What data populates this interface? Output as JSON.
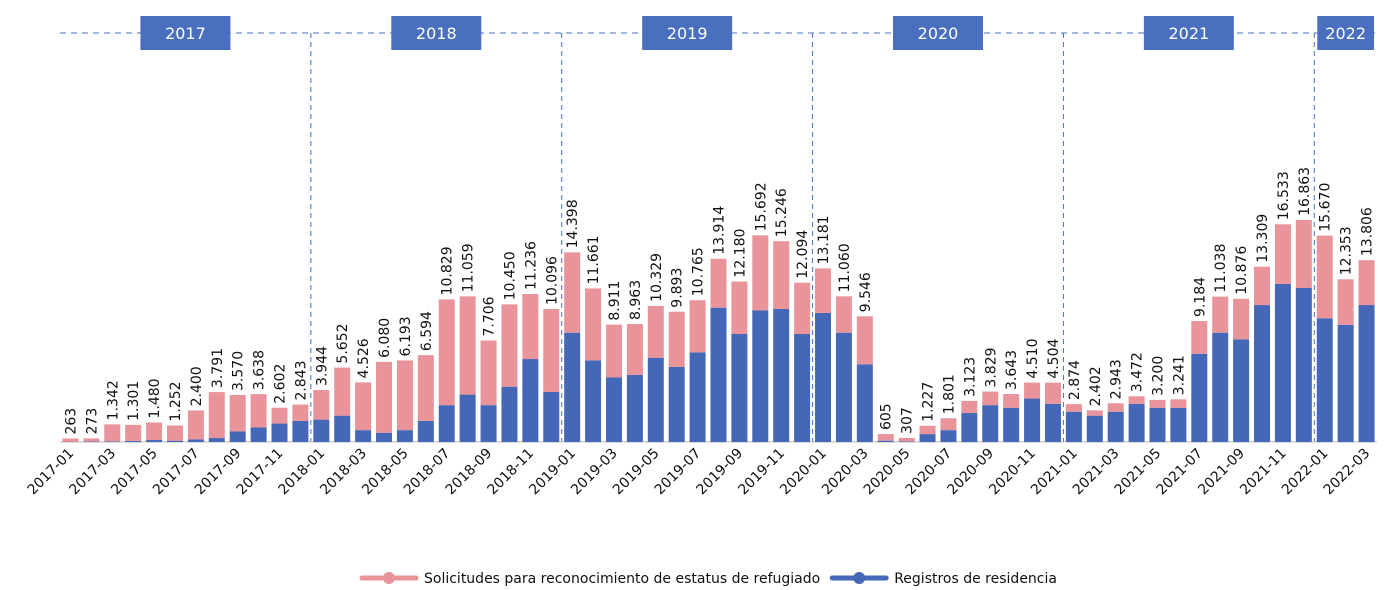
{
  "chart_data": {
    "type": "stacked_bar",
    "categories": [
      "2017-01",
      null,
      "2017-03",
      null,
      "2017-05",
      null,
      "2017-07",
      null,
      "2017-09",
      null,
      "2017-11",
      null,
      "2018-01",
      null,
      "2018-03",
      null,
      "2018-05",
      null,
      "2018-07",
      null,
      "2018-09",
      null,
      "2018-11",
      null,
      "2019-01",
      null,
      "2019-03",
      null,
      "2019-05",
      null,
      "2019-07",
      null,
      "2019-09",
      null,
      "2019-11",
      null,
      "2020-01",
      null,
      "2020-03",
      null,
      "2020-05",
      null,
      "2020-07",
      null,
      "2020-09",
      null,
      "2020-11",
      null,
      "2021-01",
      null,
      "2021-03",
      null,
      "2021-05",
      null,
      "2021-07",
      null,
      "2021-09",
      null,
      "2021-11",
      null,
      "2022-01",
      null,
      "2022-03"
    ],
    "years": [
      "2017",
      "2018",
      "2019",
      "2020",
      "2021",
      "2022"
    ],
    "series": [
      {
        "name": "Registros de residencia",
        "color": "#4567b7",
        "values": [
          20,
          30,
          50,
          80,
          150,
          100,
          200,
          300,
          800,
          1100,
          1400,
          1600,
          1700,
          2000,
          900,
          700,
          900,
          1600,
          2800,
          3600,
          2800,
          4200,
          6300,
          3800,
          8300,
          6200,
          4900,
          5100,
          6400,
          5700,
          6800,
          10200,
          8200,
          10000,
          10100,
          8200,
          9800,
          8300,
          5900,
          100,
          50,
          600,
          900,
          2200,
          2800,
          2600,
          3300,
          2900,
          2300,
          2000,
          2300,
          2900,
          2600,
          2600,
          6700,
          8300,
          7800,
          10400,
          12000,
          11700,
          9400,
          8900,
          10400
        ]
      },
      {
        "name": "Solicitudes para reconocimiento de estatus de refugiado",
        "color": "#e8949a",
        "values": [
          243,
          243,
          1292,
          1221,
          1330,
          1152,
          2200,
          3491,
          2770,
          2538,
          1202,
          1243,
          2244,
          3652,
          3626,
          5380,
          5293,
          4994,
          8029,
          7459,
          4906,
          6250,
          4936,
          6296,
          6098,
          5461,
          4011,
          3863,
          3929,
          4193,
          3965,
          3714,
          3980,
          5692,
          5146,
          3894,
          3381,
          2760,
          3646,
          505,
          257,
          627,
          901,
          923,
          1029,
          1043,
          1210,
          1604,
          574,
          402,
          643,
          572,
          600,
          641,
          2484,
          2738,
          3076,
          2909,
          4533,
          5163,
          6270,
          3453,
          3406
        ]
      }
    ],
    "totals": {
      "values": [
        263,
        273,
        1342,
        1301,
        1480,
        1252,
        2400,
        3791,
        3570,
        3638,
        2602,
        2843,
        3944,
        5652,
        4526,
        6080,
        6193,
        6594,
        10829,
        11059,
        7706,
        10450,
        11236,
        10096,
        14398,
        11661,
        8911,
        8963,
        10329,
        9893,
        10765,
        13914,
        12180,
        15692,
        15246,
        12094,
        13181,
        11060,
        9546,
        605,
        307,
        1227,
        1801,
        3123,
        3829,
        3643,
        4510,
        4504,
        2874,
        2402,
        2943,
        3472,
        3200,
        3241,
        9184,
        11038,
        10876,
        13309,
        16533,
        16863,
        15670,
        12353,
        13806
      ],
      "value_labels": [
        "263",
        "273",
        "1.342",
        "1.301",
        "1.480",
        "1.252",
        "2.400",
        "3.791",
        "3.570",
        "3.638",
        "2.602",
        "2.843",
        "3.944",
        "5.652",
        "4.526",
        "6.080",
        "6.193",
        "6.594",
        "10.829",
        "11.059",
        "7.706",
        "10.450",
        "11.236",
        "10.096",
        "14.398",
        "11.661",
        "8.911",
        "8.963",
        "10.329",
        "9.893",
        "10.765",
        "13.914",
        "12.180",
        "15.692",
        "15.246",
        "12.094",
        "13.181",
        "11.060",
        "9.546",
        "605",
        "307",
        "1.227",
        "1.801",
        "3.123",
        "3.829",
        "3.643",
        "4.510",
        "4.504",
        "2.874",
        "2.402",
        "2.943",
        "3.472",
        "3.200",
        "3.241",
        "9.184",
        "11.038",
        "10.876",
        "13.309",
        "16.533",
        "16.863",
        "15.670",
        "12.353",
        "13.806"
      ]
    },
    "legend": "bottom"
  }
}
